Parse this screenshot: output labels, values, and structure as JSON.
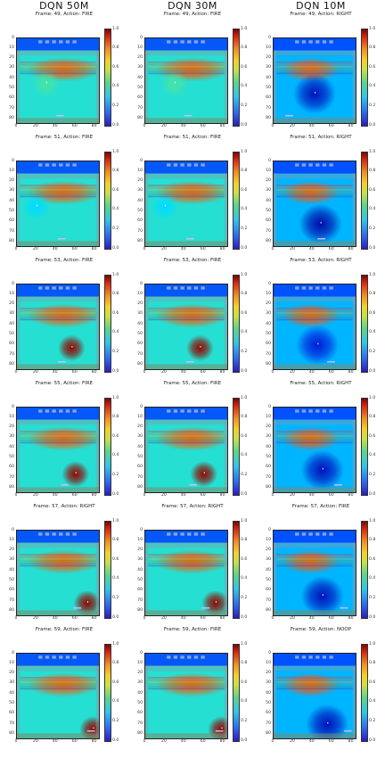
{
  "columns": [
    {
      "title": "DQN  50M"
    },
    {
      "title": "DQN  30M"
    },
    {
      "title": "DQN  10M"
    }
  ],
  "rows": [
    {
      "cells": [
        {
          "title": "Frame: 49, Action: FIRE",
          "blob": {
            "x": 30,
            "y": 45,
            "v": 0.45
          },
          "paddle_x": 40
        },
        {
          "title": "Frame: 49, Action: FIRE",
          "blob": {
            "x": 30,
            "y": 45,
            "v": 0.45
          },
          "paddle_x": 40
        },
        {
          "title": "Frame: 49, Action: RIGHT",
          "blob": {
            "x": 42,
            "y": 55,
            "v": 0.05
          },
          "paddle_x": 12
        }
      ]
    },
    {
      "cells": [
        {
          "title": "Frame: 51, Action: FIRE",
          "blob": {
            "x": 20,
            "y": 45,
            "v": 0.35
          },
          "paddle_x": 42
        },
        {
          "title": "Frame: 51, Action: FIRE",
          "blob": {
            "x": 20,
            "y": 45,
            "v": 0.35
          },
          "paddle_x": 42
        },
        {
          "title": "Frame: 51, Action: RIGHT",
          "blob": {
            "x": 48,
            "y": 62,
            "v": 0.03
          },
          "paddle_x": 45
        }
      ]
    },
    {
      "cells": [
        {
          "title": "Frame: 53, Action: FIRE",
          "blob": {
            "x": 56,
            "y": 63,
            "v": 0.98
          },
          "paddle_x": 42
        },
        {
          "title": "Frame: 53, Action: FIRE",
          "blob": {
            "x": 56,
            "y": 63,
            "v": 0.98
          },
          "paddle_x": 42
        },
        {
          "title": "Frame: 53, Action: RIGHT",
          "blob": {
            "x": 45,
            "y": 60,
            "v": 0.08
          },
          "paddle_x": 55
        }
      ]
    },
    {
      "cells": [
        {
          "title": "Frame: 55, Action: FIRE",
          "blob": {
            "x": 60,
            "y": 66,
            "v": 0.98
          },
          "paddle_x": 45
        },
        {
          "title": "Frame: 55, Action: FIRE",
          "blob": {
            "x": 60,
            "y": 66,
            "v": 0.98
          },
          "paddle_x": 45
        },
        {
          "title": "Frame: 55, Action: RIGHT",
          "blob": {
            "x": 50,
            "y": 62,
            "v": 0.05
          },
          "paddle_x": 62
        }
      ]
    },
    {
      "cells": [
        {
          "title": "Frame: 57, Action: RIGHT",
          "blob": {
            "x": 72,
            "y": 72,
            "v": 0.98
          },
          "paddle_x": 58
        },
        {
          "title": "Frame: 57, Action: RIGHT",
          "blob": {
            "x": 72,
            "y": 72,
            "v": 0.98
          },
          "paddle_x": 58
        },
        {
          "title": "Frame: 57, Action: FIRE",
          "blob": {
            "x": 50,
            "y": 65,
            "v": 0.05
          },
          "paddle_x": 68
        }
      ]
    },
    {
      "cells": [
        {
          "title": "Frame: 59, Action: FIRE",
          "blob": {
            "x": 78,
            "y": 75,
            "v": 0.98
          },
          "paddle_x": 72
        },
        {
          "title": "Frame: 59, Action: FIRE",
          "blob": {
            "x": 78,
            "y": 75,
            "v": 0.98
          },
          "paddle_x": 72
        },
        {
          "title": "Frame: 59, Action: NOOP",
          "blob": {
            "x": 55,
            "y": 70,
            "v": 0.05
          },
          "paddle_x": 72
        }
      ]
    }
  ],
  "x_ticks": [
    "0",
    "20",
    "40",
    "60",
    "80"
  ],
  "y_ticks": [
    "0",
    "10",
    "20",
    "30",
    "40",
    "50",
    "60",
    "70",
    "80"
  ],
  "colorbar_ticks": [
    "1.0",
    "0.8",
    "0.6",
    "0.4",
    "0.2",
    "0.0"
  ],
  "colormap": "jet"
}
